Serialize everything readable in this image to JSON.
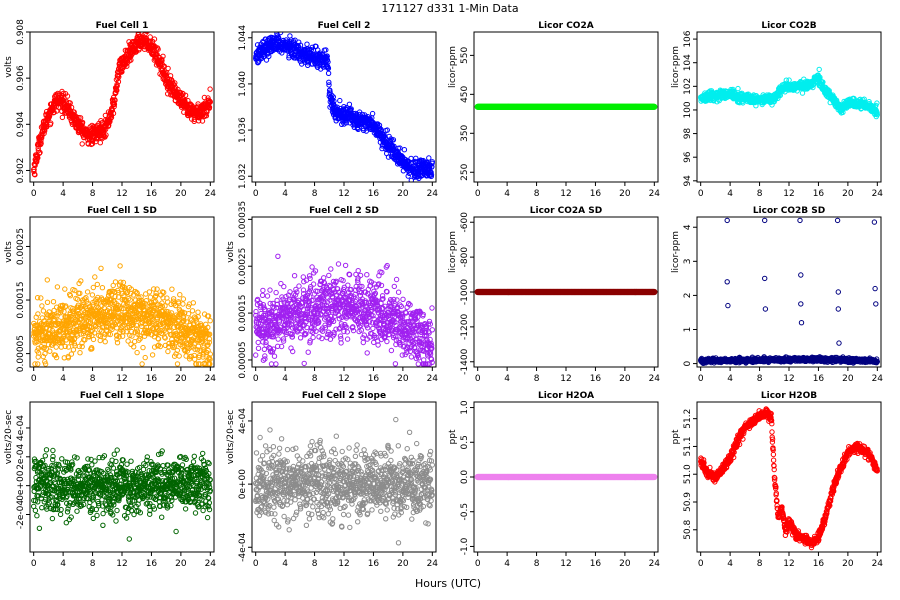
{
  "figure": {
    "title": "171127   d331   1-Min Data",
    "xlabel": "Hours (UTC)"
  },
  "chart_data": [
    {
      "id": "fuel-cell-1",
      "type": "scatter",
      "title": "Fuel Cell 1",
      "xlabel": "",
      "ylabel": "volts",
      "color": "#ff0000",
      "xlim": [
        -0.5,
        24.5
      ],
      "ylim": [
        0.9015,
        0.908
      ],
      "xticks": [
        0,
        4,
        8,
        12,
        16,
        20,
        24
      ],
      "yticks": [
        0.902,
        0.904,
        0.906,
        0.908
      ],
      "ytick_labels": [
        "0.902",
        "0.904",
        "0.906",
        "0.908"
      ],
      "pattern": "trend",
      "trend": [
        [
          0,
          0.902
        ],
        [
          1,
          0.9035
        ],
        [
          2,
          0.9044
        ],
        [
          3,
          0.905
        ],
        [
          4,
          0.905
        ],
        [
          5,
          0.9045
        ],
        [
          6,
          0.904
        ],
        [
          7,
          0.9036
        ],
        [
          8,
          0.9035
        ],
        [
          9,
          0.9037
        ],
        [
          10,
          0.904
        ],
        [
          11,
          0.905
        ],
        [
          11.5,
          0.9063
        ],
        [
          12,
          0.9066
        ],
        [
          13,
          0.907
        ],
        [
          14,
          0.9075
        ],
        [
          15,
          0.9077
        ],
        [
          16,
          0.9074
        ],
        [
          17,
          0.9068
        ],
        [
          18,
          0.906
        ],
        [
          19,
          0.9055
        ],
        [
          20,
          0.905
        ],
        [
          21,
          0.9046
        ],
        [
          22,
          0.9045
        ],
        [
          23,
          0.9046
        ],
        [
          24,
          0.905
        ]
      ],
      "noise": 0.0002,
      "outliers": []
    },
    {
      "id": "fuel-cell-2",
      "type": "scatter",
      "title": "Fuel Cell 2",
      "xlabel": "",
      "ylabel": "",
      "color": "#0000ff",
      "xlim": [
        -0.5,
        24.5
      ],
      "ylim": [
        1.0315,
        1.0445
      ],
      "xticks": [
        0,
        4,
        8,
        12,
        16,
        20,
        24
      ],
      "yticks": [
        1.032,
        1.036,
        1.04,
        1.044
      ],
      "ytick_labels": [
        "1.032",
        "1.036",
        "1.040",
        "1.044"
      ],
      "pattern": "trend",
      "trend": [
        [
          0,
          1.0425
        ],
        [
          1,
          1.043
        ],
        [
          2,
          1.0433
        ],
        [
          3,
          1.0435
        ],
        [
          4,
          1.0433
        ],
        [
          5,
          1.043
        ],
        [
          6,
          1.0428
        ],
        [
          7,
          1.0425
        ],
        [
          8,
          1.0423
        ],
        [
          9,
          1.0422
        ],
        [
          9.8,
          1.042
        ],
        [
          10,
          1.0395
        ],
        [
          10.5,
          1.038
        ],
        [
          11,
          1.0375
        ],
        [
          12,
          1.0374
        ],
        [
          13,
          1.0372
        ],
        [
          14,
          1.0368
        ],
        [
          15,
          1.0368
        ],
        [
          16,
          1.0364
        ],
        [
          17,
          1.0356
        ],
        [
          18,
          1.0348
        ],
        [
          19,
          1.034
        ],
        [
          20,
          1.0332
        ],
        [
          21,
          1.0328
        ],
        [
          22,
          1.0325
        ],
        [
          23,
          1.0325
        ],
        [
          24,
          1.0326
        ]
      ],
      "noise": 0.0004,
      "outliers": []
    },
    {
      "id": "licor-co2a",
      "type": "scatter",
      "title": "Licor CO2A",
      "xlabel": "",
      "ylabel": "licor-ppm",
      "color": "#00ee00",
      "xlim": [
        -0.5,
        24.5
      ],
      "ylim": [
        225,
        610
      ],
      "xticks": [
        0,
        4,
        8,
        12,
        16,
        20,
        24
      ],
      "yticks": [
        250,
        350,
        450,
        550
      ],
      "ytick_labels": [
        "250",
        "350",
        "450",
        "550"
      ],
      "pattern": "constant",
      "constant": 418,
      "marker": "filled",
      "outliers": []
    },
    {
      "id": "licor-co2b",
      "type": "scatter",
      "title": "Licor CO2B",
      "xlabel": "",
      "ylabel": "licor-ppm",
      "color": "#00eeee",
      "xlim": [
        -0.5,
        24.5
      ],
      "ylim": [
        93.9,
        106.6
      ],
      "xticks": [
        0,
        4,
        8,
        12,
        16,
        20,
        24
      ],
      "yticks": [
        94,
        96,
        98,
        100,
        102,
        104,
        106
      ],
      "ytick_labels": [
        "94",
        "96",
        "98",
        "100",
        "102",
        "104",
        "106"
      ],
      "pattern": "trend",
      "trend": [
        [
          0,
          101.0
        ],
        [
          2,
          101.2
        ],
        [
          4,
          101.3
        ],
        [
          6,
          101.0
        ],
        [
          8,
          100.8
        ],
        [
          10,
          101.0
        ],
        [
          11,
          101.8
        ],
        [
          12,
          102.0
        ],
        [
          14,
          102.0
        ],
        [
          15,
          102.2
        ],
        [
          16,
          102.8
        ],
        [
          17,
          101.5
        ],
        [
          18,
          101.0
        ],
        [
          19,
          100.0
        ],
        [
          20,
          100.5
        ],
        [
          22,
          100.5
        ],
        [
          24,
          99.9
        ]
      ],
      "noise": 0.2,
      "outliers": [],
      "outlier_marker": "filled"
    },
    {
      "id": "fuel-cell-1-sd",
      "type": "scatter",
      "title": "Fuel Cell 1 SD",
      "xlabel": "",
      "ylabel": "volts",
      "color": "#ffa500",
      "xlim": [
        -0.5,
        24.5
      ],
      "ylim": [
        2.5e-05,
        0.000305
      ],
      "xticks": [
        0,
        4,
        8,
        12,
        16,
        20,
        24
      ],
      "yticks": [
        5e-05,
        0.00015,
        0.00025
      ],
      "ytick_labels": [
        "0.00005",
        "0.00015",
        "0.00025"
      ],
      "pattern": "scatter",
      "trend": [
        [
          0,
          8.5e-05
        ],
        [
          4,
          0.0001
        ],
        [
          8,
          0.00012
        ],
        [
          12,
          0.00013
        ],
        [
          16,
          0.00012
        ],
        [
          20,
          0.0001
        ],
        [
          23,
          7e-05
        ],
        [
          24,
          6.5e-05
        ]
      ],
      "noise": 2.8e-05,
      "outliers": []
    },
    {
      "id": "fuel-cell-2-sd",
      "type": "scatter",
      "title": "Fuel Cell 2 SD",
      "xlabel": "",
      "ylabel": "volts",
      "color": "#a020f0",
      "xlim": [
        -0.5,
        24.5
      ],
      "ylim": [
        3.5e-05,
        0.000355
      ],
      "xticks": [
        0,
        4,
        8,
        12,
        16,
        20,
        24
      ],
      "yticks": [
        5e-05,
        0.00015,
        0.00025,
        0.00035
      ],
      "ytick_labels": [
        "0.00005",
        "0.00015",
        "0.00025",
        "0.00035"
      ],
      "pattern": "scatter",
      "trend": [
        [
          0,
          0.00012
        ],
        [
          4,
          0.00014
        ],
        [
          8,
          0.00016
        ],
        [
          12,
          0.00017
        ],
        [
          16,
          0.000155
        ],
        [
          20,
          0.00013
        ],
        [
          23,
          9e-05
        ],
        [
          24,
          8e-05
        ]
      ],
      "noise": 3.5e-05,
      "outliers": []
    },
    {
      "id": "licor-co2a-sd",
      "type": "scatter",
      "title": "Licor CO2A SD",
      "xlabel": "",
      "ylabel": "licor-ppm",
      "color": "#8b0000",
      "xlim": [
        -0.5,
        24.5
      ],
      "ylim": [
        -1430,
        -570
      ],
      "xticks": [
        0,
        4,
        8,
        12,
        16,
        20,
        24
      ],
      "yticks": [
        -1400,
        -1200,
        -1000,
        -800,
        -600
      ],
      "ytick_labels": [
        "-1400",
        "-1200",
        "-1000",
        "-800",
        "-600"
      ],
      "pattern": "constant",
      "constant": -1000,
      "marker": "filled",
      "outliers": []
    },
    {
      "id": "licor-co2b-sd",
      "type": "scatter",
      "title": "Licor CO2B SD",
      "xlabel": "",
      "ylabel": "licor-ppm",
      "color": "#000080",
      "xlim": [
        -0.5,
        24.5
      ],
      "ylim": [
        -0.1,
        4.3
      ],
      "xticks": [
        0,
        4,
        8,
        12,
        16,
        20,
        24
      ],
      "yticks": [
        0,
        1,
        2,
        3,
        4
      ],
      "ytick_labels": [
        "0",
        "1",
        "2",
        "3",
        "4"
      ],
      "pattern": "trend",
      "trend": [
        [
          0,
          0.08
        ],
        [
          8,
          0.1
        ],
        [
          12,
          0.12
        ],
        [
          16,
          0.12
        ],
        [
          20,
          0.1
        ],
        [
          24,
          0.08
        ]
      ],
      "noise": 0.03,
      "outliers": [
        [
          3.6,
          4.2
        ],
        [
          3.6,
          2.4
        ],
        [
          3.7,
          1.7
        ],
        [
          8.7,
          4.2
        ],
        [
          8.7,
          2.5
        ],
        [
          8.8,
          1.6
        ],
        [
          13.5,
          4.2
        ],
        [
          13.6,
          2.6
        ],
        [
          13.6,
          1.75
        ],
        [
          13.7,
          1.2
        ],
        [
          18.6,
          4.2
        ],
        [
          18.7,
          2.1
        ],
        [
          18.7,
          1.6
        ],
        [
          18.8,
          0.6
        ],
        [
          23.6,
          4.15
        ],
        [
          23.7,
          2.2
        ],
        [
          23.8,
          1.75
        ]
      ],
      "outlier_marker": "open"
    },
    {
      "id": "fuel-cell-1-slope",
      "type": "scatter",
      "title": "Fuel Cell 1 Slope",
      "xlabel": "",
      "ylabel": "volts/20-sec",
      "color": "#006400",
      "xlim": [
        -0.5,
        24.5
      ],
      "ylim": [
        -0.00046,
        0.00058
      ],
      "xticks": [
        0,
        4,
        8,
        12,
        16,
        20,
        24
      ],
      "yticks": [
        -0.0002,
        0,
        0.0002,
        0.0004
      ],
      "ytick_labels": [
        "-2e-04",
        "0e+00",
        "2e-04",
        "4e-04"
      ],
      "pattern": "scatter",
      "trend": [
        [
          0,
          0
        ],
        [
          24,
          0
        ]
      ],
      "noise": 9e-05,
      "outliers": []
    },
    {
      "id": "fuel-cell-2-slope",
      "type": "scatter",
      "title": "Fuel Cell 2 Slope",
      "xlabel": "",
      "ylabel": "volts/20-sec",
      "color": "#8c8c8c",
      "xlim": [
        -0.5,
        24.5
      ],
      "ylim": [
        -0.00043,
        0.00052
      ],
      "xticks": [
        0,
        4,
        8,
        12,
        16,
        20,
        24
      ],
      "yticks": [
        -0.0004,
        0,
        0.0004
      ],
      "ytick_labels": [
        "-4e-04",
        "0e+00",
        "4e-04"
      ],
      "pattern": "scatter",
      "trend": [
        [
          0,
          0
        ],
        [
          24,
          0
        ]
      ],
      "noise": 0.00011,
      "outliers": []
    },
    {
      "id": "licor-h2oa",
      "type": "scatter",
      "title": "Licor H2OA",
      "xlabel": "",
      "ylabel": "ppt",
      "color": "#ee82ee",
      "xlim": [
        -0.5,
        24.5
      ],
      "ylim": [
        -1.08,
        1.08
      ],
      "xticks": [
        0,
        4,
        8,
        12,
        16,
        20,
        24
      ],
      "yticks": [
        -1.0,
        -0.5,
        0.0,
        0.5,
        1.0
      ],
      "ytick_labels": [
        "-1.0",
        "-0.5",
        "0.0",
        "0.5",
        "1.0"
      ],
      "pattern": "constant",
      "constant": 0,
      "marker": "filled",
      "outliers": []
    },
    {
      "id": "licor-h2ob",
      "type": "scatter",
      "title": "Licor H2OB",
      "xlabel": "",
      "ylabel": "ppt",
      "color": "#ff0000",
      "xlim": [
        -0.5,
        24.5
      ],
      "ylim": [
        50.72,
        51.26
      ],
      "xticks": [
        0,
        4,
        8,
        12,
        16,
        20,
        24
      ],
      "yticks": [
        50.8,
        50.9,
        51.0,
        51.1,
        51.2
      ],
      "ytick_labels": [
        "50.8",
        "50.9",
        "51.0",
        "51.1",
        "51.2"
      ],
      "pattern": "trend",
      "trend": [
        [
          0,
          51.05
        ],
        [
          1,
          51.0
        ],
        [
          2,
          50.99
        ],
        [
          3,
          51.02
        ],
        [
          4,
          51.06
        ],
        [
          5,
          51.12
        ],
        [
          6,
          51.17
        ],
        [
          7,
          51.19
        ],
        [
          8,
          51.21
        ],
        [
          9,
          51.22
        ],
        [
          9.6,
          51.2
        ],
        [
          10,
          51.0
        ],
        [
          10.5,
          50.85
        ],
        [
          11,
          50.88
        ],
        [
          11.5,
          50.8
        ],
        [
          12,
          50.83
        ],
        [
          13,
          50.78
        ],
        [
          14,
          50.77
        ],
        [
          15,
          50.75
        ],
        [
          16,
          50.77
        ],
        [
          17,
          50.85
        ],
        [
          18,
          50.95
        ],
        [
          19,
          51.02
        ],
        [
          20,
          51.08
        ],
        [
          21,
          51.1
        ],
        [
          22,
          51.09
        ],
        [
          23,
          51.07
        ],
        [
          24,
          51.01
        ]
      ],
      "noise": 0.008,
      "outliers": []
    }
  ]
}
